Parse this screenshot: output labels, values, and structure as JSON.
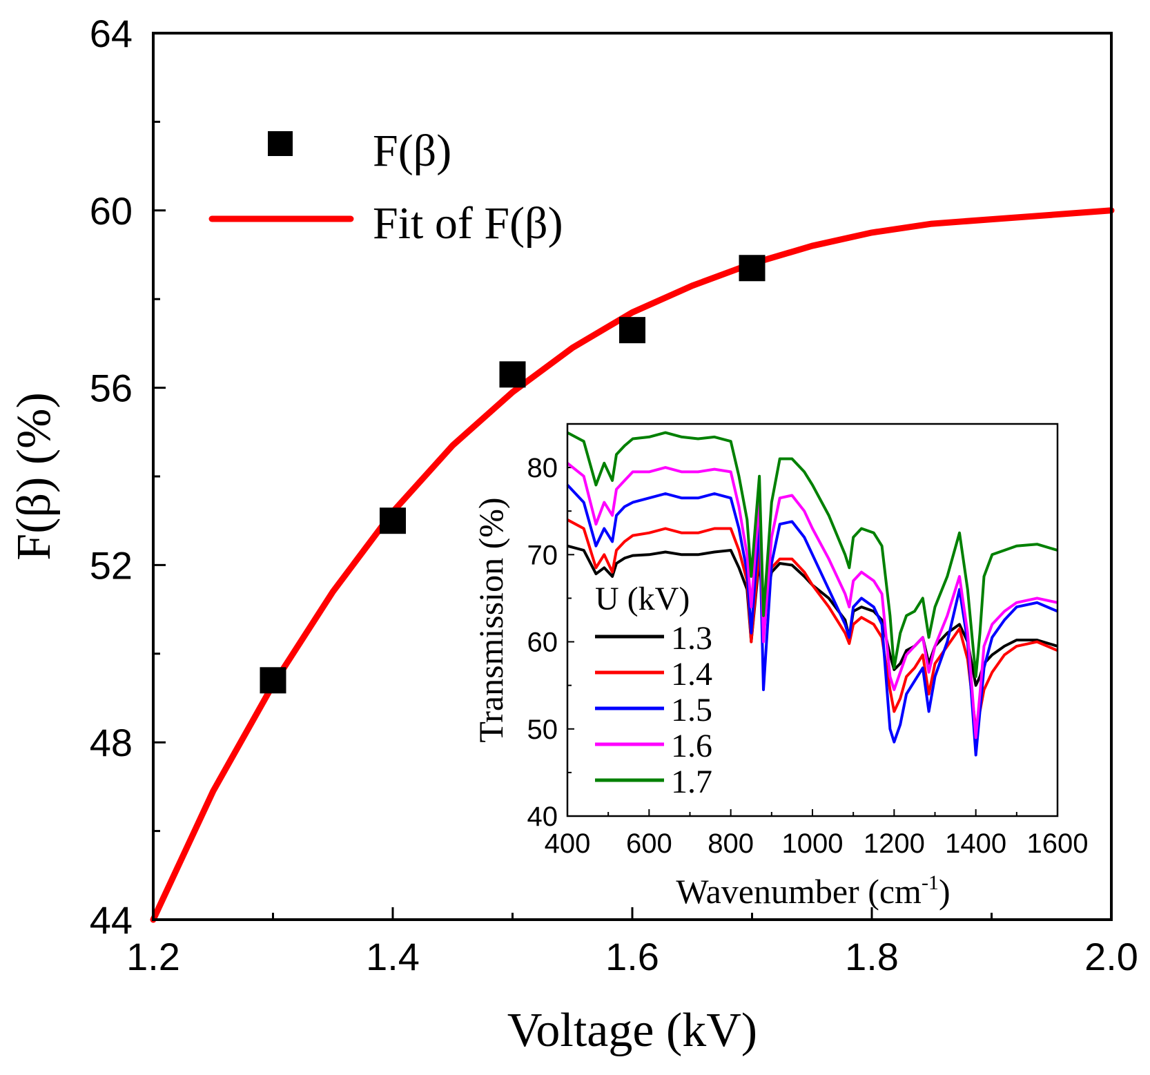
{
  "chart_data": [
    {
      "type": "scatter",
      "title": "",
      "xlabel": "Voltage (kV)",
      "ylabel": "F(β) (%)",
      "xlim": [
        1.2,
        2.0
      ],
      "ylim": [
        44,
        64
      ],
      "xticks": [
        "1.2",
        "1.4",
        "1.6",
        "1.8",
        "2.0"
      ],
      "yticks": [
        "44",
        "48",
        "52",
        "56",
        "60",
        "64"
      ],
      "series": [
        {
          "name": "F(β)",
          "kind": "scatter",
          "color": "#000000",
          "x": [
            1.3,
            1.4,
            1.5,
            1.6,
            1.7
          ],
          "y": [
            49.4,
            53.0,
            56.3,
            57.3,
            58.7
          ]
        },
        {
          "name": "Fit of F(β)",
          "kind": "line",
          "color": "#ff0000",
          "x": [
            1.2,
            1.25,
            1.3,
            1.35,
            1.4,
            1.45,
            1.5,
            1.55,
            1.6,
            1.65,
            1.7,
            1.75,
            1.8,
            1.85,
            1.9,
            1.95,
            2.0
          ],
          "y": [
            44.0,
            46.9,
            49.3,
            51.4,
            53.2,
            54.7,
            55.9,
            56.9,
            57.7,
            58.3,
            58.8,
            59.2,
            59.5,
            59.7,
            59.8,
            59.9,
            60.0
          ]
        }
      ]
    },
    {
      "type": "line",
      "title": "",
      "xlabel": "Wavenumber (cm",
      "xlabel_sup": "-1",
      "xlabel_close": ")",
      "ylabel": "Transmission (%)",
      "xlim": [
        400,
        1600
      ],
      "ylim": [
        40,
        85
      ],
      "xticks": [
        "400",
        "600",
        "800",
        "1000",
        "1200",
        "1400",
        "1600"
      ],
      "yticks": [
        "40",
        "50",
        "60",
        "70",
        "80"
      ],
      "legend_title": "U (kV)",
      "x": [
        400,
        440,
        470,
        490,
        510,
        520,
        540,
        560,
        600,
        640,
        680,
        720,
        760,
        800,
        820,
        840,
        850,
        870,
        880,
        900,
        920,
        950,
        980,
        1000,
        1040,
        1080,
        1090,
        1100,
        1120,
        1150,
        1170,
        1190,
        1200,
        1215,
        1230,
        1250,
        1270,
        1285,
        1300,
        1330,
        1360,
        1380,
        1400,
        1410,
        1420,
        1440,
        1470,
        1500,
        1550,
        1600
      ],
      "series": [
        {
          "name": "1.3",
          "color": "#000000",
          "values": [
            71.0,
            70.5,
            67.8,
            68.5,
            67.5,
            69.0,
            69.6,
            69.9,
            70.0,
            70.3,
            70.0,
            70.0,
            70.3,
            70.5,
            68.5,
            66.0,
            60.0,
            69.5,
            63.0,
            68.0,
            69.0,
            68.8,
            67.5,
            66.5,
            65.0,
            62.5,
            60.5,
            63.5,
            64.0,
            63.5,
            62.5,
            58.5,
            56.8,
            57.5,
            59.0,
            59.5,
            60.5,
            57.5,
            59.5,
            61.0,
            62.0,
            60.0,
            55.0,
            56.0,
            57.5,
            58.5,
            59.5,
            60.2,
            60.2,
            59.5
          ]
        },
        {
          "name": "1.4",
          "color": "#ff0000",
          "values": [
            74.0,
            73.0,
            68.5,
            70.0,
            68.0,
            70.5,
            71.5,
            72.2,
            72.5,
            73.0,
            72.5,
            72.5,
            73.0,
            73.0,
            70.5,
            67.0,
            60.0,
            70.5,
            62.5,
            68.5,
            69.5,
            69.5,
            68.0,
            66.5,
            64.0,
            61.0,
            59.8,
            62.0,
            62.8,
            62.0,
            60.5,
            54.5,
            52.0,
            53.5,
            56.0,
            57.0,
            58.5,
            54.0,
            57.5,
            59.5,
            61.5,
            58.0,
            50.0,
            52.0,
            54.5,
            56.5,
            58.5,
            59.5,
            60.0,
            59.0
          ]
        },
        {
          "name": "1.5",
          "color": "#0000ff",
          "values": [
            78.0,
            76.0,
            71.0,
            73.0,
            71.5,
            74.5,
            75.5,
            76.0,
            76.5,
            77.0,
            76.5,
            76.5,
            77.0,
            76.5,
            73.0,
            68.0,
            61.0,
            74.0,
            54.5,
            69.0,
            73.5,
            73.8,
            72.0,
            70.0,
            66.0,
            62.0,
            60.5,
            64.0,
            65.0,
            64.0,
            62.0,
            50.0,
            48.5,
            50.5,
            54.0,
            55.5,
            57.0,
            52.0,
            56.0,
            60.0,
            66.0,
            60.0,
            47.0,
            52.0,
            57.0,
            60.5,
            62.5,
            64.0,
            64.5,
            63.5
          ]
        },
        {
          "name": "1.6",
          "color": "#ff00ff",
          "values": [
            80.5,
            79.0,
            73.5,
            76.0,
            74.5,
            77.5,
            78.5,
            79.5,
            79.5,
            80.0,
            79.5,
            79.5,
            79.8,
            79.5,
            75.5,
            70.0,
            64.0,
            76.5,
            60.0,
            72.0,
            76.5,
            76.8,
            75.0,
            73.0,
            69.5,
            65.5,
            64.0,
            67.0,
            68.0,
            67.0,
            65.5,
            56.0,
            54.5,
            56.5,
            58.5,
            59.5,
            60.5,
            56.5,
            59.5,
            63.0,
            67.5,
            61.0,
            49.0,
            54.0,
            59.5,
            62.0,
            63.5,
            64.5,
            65.0,
            64.5
          ]
        },
        {
          "name": "1.7",
          "color": "#008000",
          "values": [
            84.0,
            83.0,
            78.0,
            80.5,
            78.5,
            81.5,
            82.5,
            83.3,
            83.5,
            84.0,
            83.5,
            83.3,
            83.5,
            83.0,
            79.0,
            74.0,
            67.5,
            79.0,
            63.0,
            76.0,
            81.0,
            81.0,
            79.5,
            78.0,
            74.5,
            70.0,
            68.5,
            72.0,
            73.0,
            72.5,
            71.0,
            63.0,
            57.0,
            61.0,
            63.0,
            63.5,
            65.0,
            60.5,
            64.0,
            67.5,
            72.5,
            66.0,
            56.0,
            61.0,
            67.5,
            70.0,
            70.5,
            71.0,
            71.2,
            70.5
          ]
        }
      ]
    }
  ]
}
